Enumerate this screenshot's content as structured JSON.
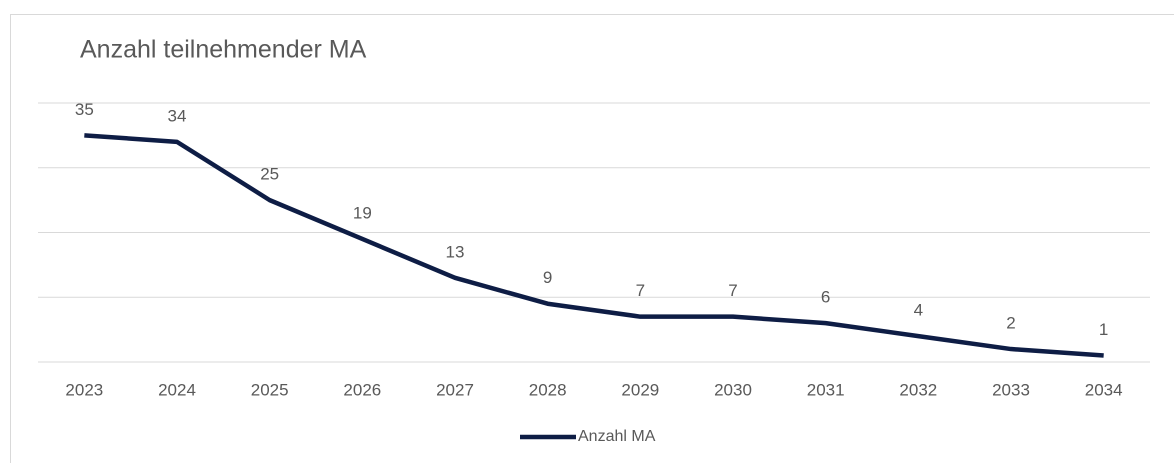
{
  "chart_data": {
    "type": "line",
    "title": "Anzahl teilnehmender MA",
    "categories": [
      "2023",
      "2024",
      "2025",
      "2026",
      "2027",
      "2028",
      "2029",
      "2030",
      "2031",
      "2032",
      "2033",
      "2034"
    ],
    "series": [
      {
        "name": "Anzahl MA",
        "color": "#0e1d45",
        "values": [
          35,
          34,
          25,
          19,
          13,
          9,
          7,
          7,
          6,
          4,
          2,
          1
        ]
      }
    ],
    "ylim": [
      0,
      40
    ],
    "yticks": [
      0,
      10,
      20,
      30,
      40
    ],
    "grid": true,
    "legend": "bottom"
  }
}
